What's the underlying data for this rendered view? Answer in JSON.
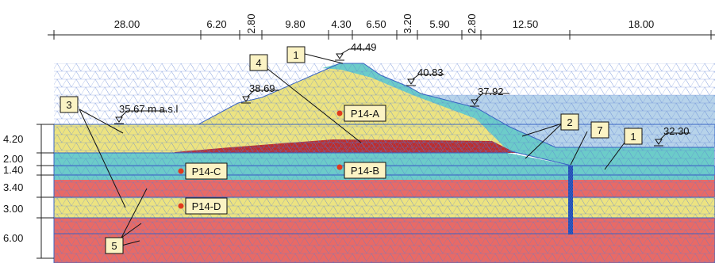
{
  "colors": {
    "layer_yellow": "#ece381",
    "layer_cyan": "#6cccc9",
    "layer_red": "#e86a66",
    "layer_darkred": "#c12c28",
    "water": "#b7d3ea",
    "wall": "#2f5fc8",
    "mesh": "#5a7fd2",
    "label_box": "#fbf3c4"
  },
  "top_dimensions": [
    "28.00",
    "6.20",
    "2.80",
    "9.80",
    "4.30",
    "6.50",
    "3.20",
    "5.90",
    "2.80",
    "12.50",
    "18.00"
  ],
  "left_dimensions": [
    "4.20",
    "2.00",
    "1.40",
    "3.40",
    "3.00",
    "6.00"
  ],
  "elevations": {
    "e1": "44.49",
    "e2": "40.83",
    "e3": "38.69",
    "e4": "37.92",
    "e5": "35.67 m a.s.l",
    "e6": "32.30"
  },
  "material_labels": {
    "m1_top": "1",
    "m4": "4",
    "m3": "3",
    "m2": "2",
    "m7": "7",
    "m1_right": "1",
    "m5": "5"
  },
  "points": {
    "p14a": "P14-A",
    "p14b": "P14-B",
    "p14c": "P14-C",
    "p14d": "P14-D"
  }
}
